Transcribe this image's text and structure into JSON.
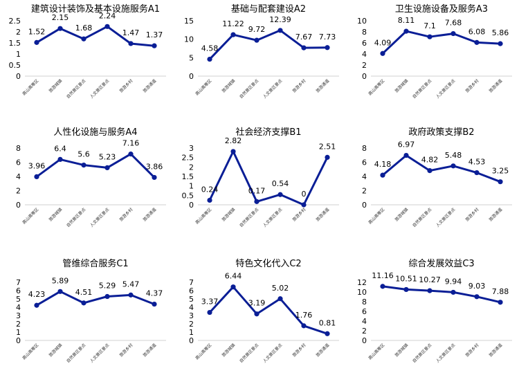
{
  "colors": {
    "line": "#0A1E96",
    "axis": "#d0d0d0"
  },
  "chart_data": [
    {
      "type": "line",
      "title": "建筑设计装饰及基本设施服务A1",
      "categories": [
        "高山高寒区",
        "旅游城镇",
        "自然景区景点",
        "人文景区景点",
        "旅游乡村",
        "旅游通道"
      ],
      "values": [
        1.52,
        2.15,
        1.68,
        2.24,
        1.47,
        1.37
      ],
      "yticks": [
        0,
        0.5,
        1,
        1.5,
        2,
        2.5
      ],
      "ylim": [
        0,
        2.5
      ],
      "grid": false,
      "legend": "none"
    },
    {
      "type": "line",
      "title": "基础与配套建设A2",
      "categories": [
        "高山高寒区",
        "旅游城镇",
        "自然景区景点",
        "人文景区景点",
        "旅游乡村",
        "旅游通道"
      ],
      "values": [
        4.58,
        11.22,
        9.72,
        12.39,
        7.67,
        7.73
      ],
      "yticks": [
        0,
        5,
        10,
        15
      ],
      "ylim": [
        0,
        15
      ],
      "grid": false,
      "legend": "none"
    },
    {
      "type": "line",
      "title": "卫生设施设备及服务A3",
      "categories": [
        "高山高寒区",
        "旅游城镇",
        "自然景区景点",
        "人文景区景点",
        "旅游乡村",
        "旅游通道"
      ],
      "values": [
        4.09,
        8.11,
        7.1,
        7.68,
        6.08,
        5.86
      ],
      "yticks": [
        0,
        2,
        4,
        6,
        8,
        10
      ],
      "ylim": [
        0,
        10
      ],
      "grid": false,
      "legend": "none"
    },
    {
      "type": "line",
      "title": "人性化设施与服务A4",
      "categories": [
        "高山高寒区",
        "旅游城镇",
        "自然景区景点",
        "人文景区景点",
        "旅游乡村",
        "旅游通道"
      ],
      "values": [
        3.96,
        6.4,
        5.6,
        5.23,
        7.16,
        3.86
      ],
      "yticks": [
        0,
        2,
        4,
        6,
        8
      ],
      "ylim": [
        0,
        8
      ],
      "grid": false,
      "legend": "none"
    },
    {
      "type": "line",
      "title": "社会经济支撑B1",
      "categories": [
        "高山高寒区",
        "旅游城镇",
        "自然景区景点",
        "人文景区景点",
        "旅游乡村",
        "旅游通道"
      ],
      "values": [
        0.24,
        2.82,
        0.17,
        0.54,
        0,
        2.51
      ],
      "yticks": [
        0,
        0.5,
        1,
        1.5,
        2,
        2.5,
        3
      ],
      "ylim": [
        0,
        3
      ],
      "grid": false,
      "legend": "none"
    },
    {
      "type": "line",
      "title": "政府政策支撑B2",
      "categories": [
        "高山高寒区",
        "旅游城镇",
        "自然景区景点",
        "人文景区景点",
        "旅游乡村",
        "旅游通道"
      ],
      "values": [
        4.18,
        6.97,
        4.82,
        5.48,
        4.53,
        3.25
      ],
      "yticks": [
        0,
        2,
        4,
        6,
        8
      ],
      "ylim": [
        0,
        8
      ],
      "grid": false,
      "legend": "none"
    },
    {
      "type": "line",
      "title": "管维综合服务C1",
      "categories": [
        "高山高寒区",
        "旅游城镇",
        "自然景区景点",
        "人文景区景点",
        "旅游乡村",
        "旅游通道"
      ],
      "values": [
        4.23,
        5.89,
        4.51,
        5.29,
        5.47,
        4.37
      ],
      "yticks": [
        0,
        1,
        2,
        3,
        4,
        5,
        6,
        7
      ],
      "ylim": [
        0,
        7
      ],
      "grid": false,
      "legend": "none"
    },
    {
      "type": "line",
      "title": "特色文化代入C2",
      "categories": [
        "高山高寒区",
        "旅游城镇",
        "自然景区景点",
        "人文景区景点",
        "旅游乡村",
        "旅游通道"
      ],
      "values": [
        3.37,
        6.44,
        3.19,
        5.02,
        1.76,
        0.81
      ],
      "yticks": [
        0,
        1,
        2,
        3,
        4,
        5,
        6,
        7
      ],
      "ylim": [
        0,
        7
      ],
      "grid": false,
      "legend": "none"
    },
    {
      "type": "line",
      "title": "综合发展效益C3",
      "categories": [
        "高山高寒区",
        "旅游城镇",
        "自然景区景点",
        "人文景区景点",
        "旅游乡村",
        "旅游通道"
      ],
      "values": [
        11.16,
        10.51,
        10.27,
        9.94,
        9.03,
        7.88
      ],
      "yticks": [
        0,
        2,
        4,
        6,
        8,
        10,
        12
      ],
      "ylim": [
        0,
        12
      ],
      "grid": false,
      "legend": "none"
    }
  ]
}
